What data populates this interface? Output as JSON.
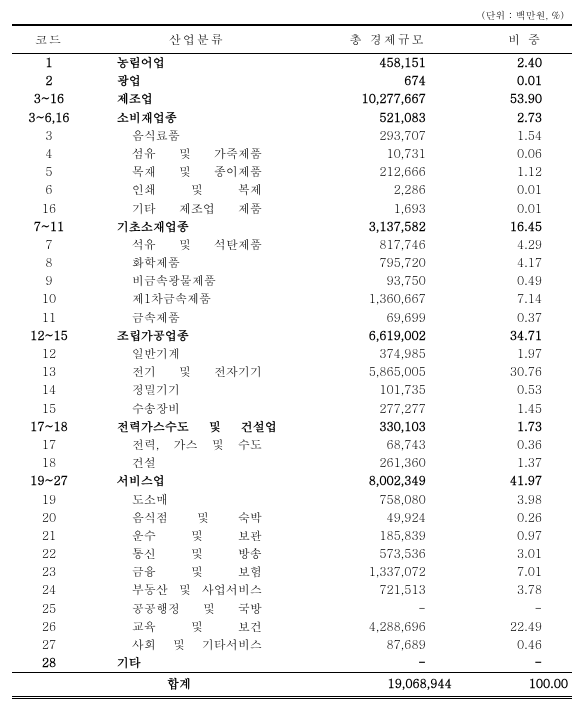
{
  "unit_note": "(단위 : 백만원, %)",
  "headers": {
    "code": "코드",
    "name": "산업분류",
    "val": "총 경제규모",
    "pct": "비 중"
  },
  "rows": [
    {
      "code": "1",
      "name": "농림어업",
      "val": "458,151",
      "pct": "2.40",
      "bold": true,
      "indent": 0
    },
    {
      "code": "2",
      "name": "광업",
      "val": "674",
      "pct": "0.01",
      "bold": true,
      "indent": 0
    },
    {
      "code": "3~16",
      "name": "제조업",
      "val": "10,277,667",
      "pct": "53.90",
      "bold": true,
      "indent": 0
    },
    {
      "code": "3~6,16",
      "name": "소비재업종",
      "val": "521,083",
      "pct": "2.73",
      "bold": true,
      "indent": 0
    },
    {
      "code": "3",
      "name": "음식료품",
      "val": "293,707",
      "pct": "1.54",
      "bold": false,
      "indent": 1
    },
    {
      "code": "4",
      "name": "섬유 및 가죽제품",
      "val": "10,731",
      "pct": "0.06",
      "bold": false,
      "indent": 1
    },
    {
      "code": "5",
      "name": "목재 및 종이제품",
      "val": "212,666",
      "pct": "1.12",
      "bold": false,
      "indent": 1
    },
    {
      "code": "6",
      "name": "인쇄 및 복제",
      "val": "2,286",
      "pct": "0.01",
      "bold": false,
      "indent": 1
    },
    {
      "code": "16",
      "name": "기타 제조업 제품",
      "val": "1,693",
      "pct": "0.01",
      "bold": false,
      "indent": 1
    },
    {
      "code": "7~11",
      "name": "기초소재업종",
      "val": "3,137,582",
      "pct": "16.45",
      "bold": true,
      "indent": 0
    },
    {
      "code": "7",
      "name": "석유 및 석탄제품",
      "val": "817,746",
      "pct": "4.29",
      "bold": false,
      "indent": 1
    },
    {
      "code": "8",
      "name": "화학제품",
      "val": "795,720",
      "pct": "4.17",
      "bold": false,
      "indent": 1
    },
    {
      "code": "9",
      "name": "비금속광물제품",
      "val": "93,750",
      "pct": "0.49",
      "bold": false,
      "indent": 1
    },
    {
      "code": "10",
      "name": "제1차금속제품",
      "val": "1,360,667",
      "pct": "7.14",
      "bold": false,
      "indent": 1
    },
    {
      "code": "11",
      "name": "금속제품",
      "val": "69,699",
      "pct": "0.37",
      "bold": false,
      "indent": 1
    },
    {
      "code": "12~15",
      "name": "조립가공업종",
      "val": "6,619,002",
      "pct": "34.71",
      "bold": true,
      "indent": 0
    },
    {
      "code": "12",
      "name": "일반기계",
      "val": "374,985",
      "pct": "1.97",
      "bold": false,
      "indent": 1
    },
    {
      "code": "13",
      "name": "전기 및 전자기기",
      "val": "5,865,005",
      "pct": "30.76",
      "bold": false,
      "indent": 1
    },
    {
      "code": "14",
      "name": "정밀기기",
      "val": "101,735",
      "pct": "0.53",
      "bold": false,
      "indent": 1
    },
    {
      "code": "15",
      "name": "수송장비",
      "val": "277,277",
      "pct": "1.45",
      "bold": false,
      "indent": 1
    },
    {
      "code": "17~18",
      "name": "전력가스수도 및 건설업",
      "val": "330,103",
      "pct": "1.73",
      "bold": true,
      "indent": 0
    },
    {
      "code": "17",
      "name": "전력, 가스 및 수도",
      "val": "68,743",
      "pct": "0.36",
      "bold": false,
      "indent": 1
    },
    {
      "code": "18",
      "name": "건설",
      "val": "261,360",
      "pct": "1.37",
      "bold": false,
      "indent": 1
    },
    {
      "code": "19~27",
      "name": "서비스업",
      "val": "8,002,349",
      "pct": "41.97",
      "bold": true,
      "indent": 0
    },
    {
      "code": "19",
      "name": "도소매",
      "val": "758,080",
      "pct": "3.98",
      "bold": false,
      "indent": 1
    },
    {
      "code": "20",
      "name": "음식점 및 숙박",
      "val": "49,924",
      "pct": "0.26",
      "bold": false,
      "indent": 1
    },
    {
      "code": "21",
      "name": "운수 및 보관",
      "val": "185,839",
      "pct": "0.97",
      "bold": false,
      "indent": 1
    },
    {
      "code": "22",
      "name": "통신 및 방송",
      "val": "573,536",
      "pct": "3.01",
      "bold": false,
      "indent": 1
    },
    {
      "code": "23",
      "name": "금융 및 보험",
      "val": "1,337,072",
      "pct": "7.01",
      "bold": false,
      "indent": 1
    },
    {
      "code": "24",
      "name": "부동산 및 사업서비스",
      "val": "721,513",
      "pct": "3.78",
      "bold": false,
      "indent": 1
    },
    {
      "code": "25",
      "name": "공공행정 및 국방",
      "val": "-",
      "pct": "-",
      "bold": false,
      "indent": 1
    },
    {
      "code": "26",
      "name": "교육 및 보건",
      "val": "4,288,696",
      "pct": "22.49",
      "bold": false,
      "indent": 1
    },
    {
      "code": "27",
      "name": "사회 및 기타서비스",
      "val": "87,689",
      "pct": "0.46",
      "bold": false,
      "indent": 1
    },
    {
      "code": "28",
      "name": "기타",
      "val": "-",
      "pct": "-",
      "bold": true,
      "indent": 0
    }
  ],
  "total": {
    "code": "",
    "name": "합계",
    "val": "19,068,944",
    "pct": "100.00"
  }
}
